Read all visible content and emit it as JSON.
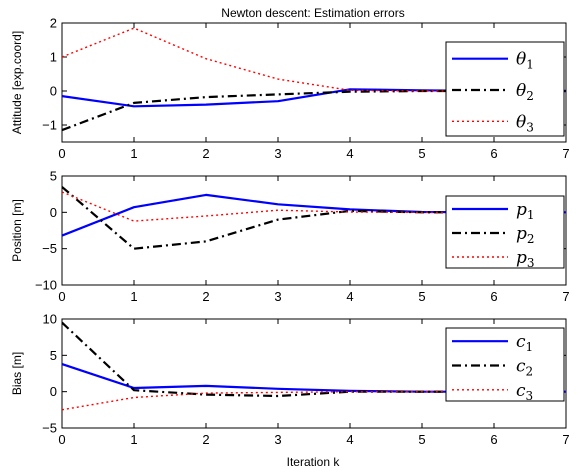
{
  "chart_data": [
    {
      "type": "line",
      "title": "Newton descent: Estimation errors",
      "ylabel": "Attitude [exp.coord]",
      "xlabel": "",
      "xlim": [
        0,
        7
      ],
      "ylim": [
        -1.5,
        2
      ],
      "xticks": [
        "0",
        "1",
        "2",
        "3",
        "4",
        "5",
        "6",
        "7"
      ],
      "yticks": [
        {
          "v": -1,
          "label": "−1"
        },
        {
          "v": 0,
          "label": "0"
        },
        {
          "v": 1,
          "label": "1"
        },
        {
          "v": 2,
          "label": "2"
        }
      ],
      "legend_position": "top-right",
      "series": [
        {
          "name": "θ",
          "sub": "1",
          "style": "solid",
          "color": "#0000ff",
          "x": [
            0,
            1,
            2,
            3,
            4,
            5,
            6,
            7
          ],
          "y": [
            -0.15,
            -0.45,
            -0.4,
            -0.3,
            0.05,
            0.02,
            0,
            0
          ]
        },
        {
          "name": "θ",
          "sub": "2",
          "style": "dashdot",
          "color": "#000000",
          "x": [
            0,
            1,
            2,
            3,
            4,
            5,
            6,
            7
          ],
          "y": [
            -1.15,
            -0.35,
            -0.18,
            -0.1,
            -0.02,
            0,
            0,
            0
          ]
        },
        {
          "name": "θ",
          "sub": "3",
          "style": "dotted",
          "color": "#ff0000",
          "x": [
            0,
            1,
            2,
            3,
            4,
            5,
            6,
            7
          ],
          "y": [
            1.0,
            1.85,
            0.95,
            0.35,
            0.02,
            0,
            0,
            0
          ]
        }
      ]
    },
    {
      "type": "line",
      "title": "",
      "ylabel": "Position [m]",
      "xlabel": "",
      "xlim": [
        0,
        7
      ],
      "ylim": [
        -10,
        5
      ],
      "xticks": [
        "0",
        "1",
        "2",
        "3",
        "4",
        "5",
        "6",
        "7"
      ],
      "yticks": [
        {
          "v": -10,
          "label": "−10"
        },
        {
          "v": -5,
          "label": "−5"
        },
        {
          "v": 0,
          "label": "0"
        },
        {
          "v": 5,
          "label": "5"
        }
      ],
      "legend_position": "right",
      "series": [
        {
          "name": "p",
          "sub": "1",
          "style": "solid",
          "color": "#0000ff",
          "x": [
            0,
            1,
            2,
            3,
            4,
            5,
            6,
            7
          ],
          "y": [
            -3.2,
            0.7,
            2.4,
            1.1,
            0.4,
            0.05,
            0,
            0
          ]
        },
        {
          "name": "p",
          "sub": "2",
          "style": "dashdot",
          "color": "#000000",
          "x": [
            0,
            1,
            2,
            3,
            4,
            5,
            6,
            7
          ],
          "y": [
            3.5,
            -5.0,
            -4.0,
            -1.0,
            0.2,
            0,
            0,
            0
          ]
        },
        {
          "name": "p",
          "sub": "3",
          "style": "dotted",
          "color": "#ff0000",
          "x": [
            0,
            1,
            2,
            3,
            4,
            5,
            6,
            7
          ],
          "y": [
            2.8,
            -1.2,
            -0.5,
            0.3,
            0.05,
            0,
            0,
            0
          ]
        }
      ]
    },
    {
      "type": "line",
      "title": "",
      "ylabel": "Bias [m]",
      "xlabel": "Iteration k",
      "xlim": [
        0,
        7
      ],
      "ylim": [
        -5,
        10
      ],
      "xticks": [
        "0",
        "1",
        "2",
        "3",
        "4",
        "5",
        "6",
        "7"
      ],
      "yticks": [
        {
          "v": -5,
          "label": "−5"
        },
        {
          "v": 0,
          "label": "0"
        },
        {
          "v": 5,
          "label": "5"
        },
        {
          "v": 10,
          "label": "10"
        }
      ],
      "legend_position": "top-right",
      "series": [
        {
          "name": "c",
          "sub": "1",
          "style": "solid",
          "color": "#0000ff",
          "x": [
            0,
            1,
            2,
            3,
            4,
            5,
            6,
            7
          ],
          "y": [
            3.8,
            0.5,
            0.8,
            0.4,
            0.1,
            0,
            0,
            0
          ]
        },
        {
          "name": "c",
          "sub": "2",
          "style": "dashdot",
          "color": "#000000",
          "x": [
            0,
            1,
            2,
            3,
            4,
            5,
            6,
            7
          ],
          "y": [
            9.5,
            0.2,
            -0.4,
            -0.6,
            0,
            0,
            0,
            0
          ]
        },
        {
          "name": "c",
          "sub": "3",
          "style": "dotted",
          "color": "#ff0000",
          "x": [
            0,
            1,
            2,
            3,
            4,
            5,
            6,
            7
          ],
          "y": [
            -2.5,
            -0.8,
            -0.2,
            -0.1,
            0,
            0,
            0,
            0
          ]
        }
      ]
    }
  ]
}
